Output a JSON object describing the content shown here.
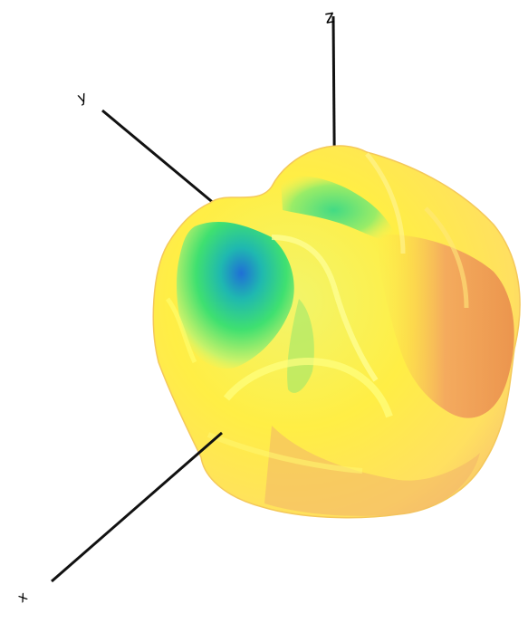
{
  "figure": {
    "axes": [
      {
        "id": "z",
        "label": "z"
      },
      {
        "id": "y",
        "label": "y"
      },
      {
        "id": "x",
        "label": "x"
      }
    ],
    "colormap": [
      "#1e6fd8",
      "#19c8a0",
      "#3be064",
      "#c8f060",
      "#fff23a",
      "#ffd43a",
      "#f5a060",
      "#e98545"
    ]
  }
}
